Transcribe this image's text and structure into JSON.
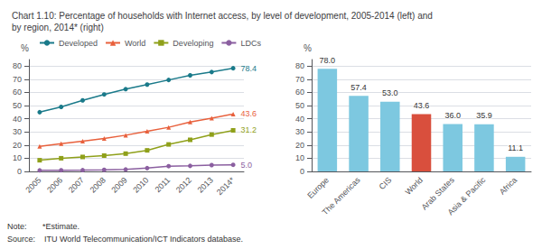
{
  "title": "Chart 1.10: Percentage of households with Internet access, by level of development, 2005-2014 (left) and\nby region, 2014* (right)",
  "annotations": [
    "Note:       *Estimate.",
    "Source:    ITU World Telecommunication/ICT Indicators database."
  ],
  "chart_data": [
    {
      "type": "line",
      "categories": [
        "2005",
        "2006",
        "2007",
        "2008",
        "2009",
        "2010",
        "2011",
        "2012",
        "2013",
        "2014*"
      ],
      "series": [
        {
          "name": "Developed",
          "color": "#1a7a8a",
          "marker": "circle",
          "values": [
            45.0,
            49.0,
            54.0,
            58.5,
            62.5,
            66.0,
            69.5,
            73.0,
            75.5,
            78.4
          ]
        },
        {
          "name": "World",
          "color": "#e8603c",
          "marker": "triangle",
          "values": [
            19.0,
            21.0,
            23.0,
            25.0,
            27.5,
            30.5,
            33.5,
            37.5,
            40.5,
            43.6
          ]
        },
        {
          "name": "Developing",
          "color": "#8fa01a",
          "marker": "square",
          "values": [
            8.5,
            10.0,
            11.0,
            12.0,
            13.5,
            16.0,
            20.5,
            24.0,
            28.0,
            31.2
          ]
        },
        {
          "name": "LDCs",
          "color": "#8b5fa0",
          "marker": "circle",
          "values": [
            0.8,
            0.9,
            1.0,
            1.2,
            1.5,
            2.5,
            4.0,
            4.2,
            4.8,
            5.0
          ]
        }
      ],
      "annotations": [
        {
          "text": "78.4",
          "x": "2014*",
          "y": 78.4
        },
        {
          "text": "43.6",
          "x": "2014*",
          "y": 43.6
        },
        {
          "text": "31.2",
          "x": "2014*",
          "y": 31.2
        },
        {
          "text": "5.0",
          "x": "2014*",
          "y": 5.0
        }
      ],
      "ylabel": "%",
      "ylim": [
        0,
        85
      ],
      "yticks": [
        0,
        10,
        20,
        30,
        40,
        50,
        60,
        70,
        80
      ],
      "grid": true,
      "legend": "upper left"
    },
    {
      "type": "bar",
      "categories": [
        "Europe",
        "The Americas",
        "CIS",
        "World",
        "Arab States",
        "Asia & Pacific",
        "Africa"
      ],
      "values": [
        78.0,
        57.4,
        53.0,
        43.6,
        36.0,
        35.9,
        11.1
      ],
      "value_labels": [
        "78.0",
        "57.4",
        "53.0",
        "43.6",
        "36.0",
        "35.9",
        "11.1"
      ],
      "colors": [
        "#7dc8e0",
        "#7dc8e0",
        "#7dc8e0",
        "#d94f3d",
        "#7dc8e0",
        "#7dc8e0",
        "#7dc8e0"
      ],
      "ylabel": "%",
      "ylim": [
        0,
        85
      ],
      "yticks": [
        0,
        10,
        20,
        30,
        40,
        50,
        60,
        70,
        80
      ],
      "grid": true,
      "data_labels": true
    }
  ]
}
